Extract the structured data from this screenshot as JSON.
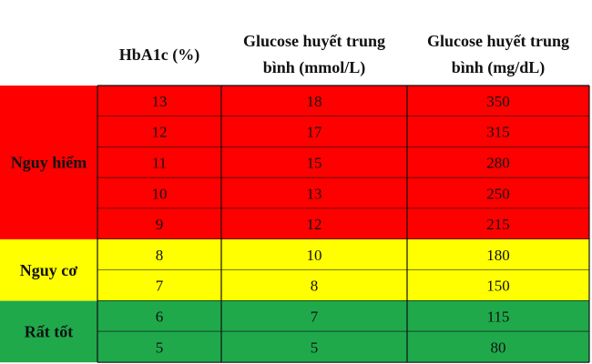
{
  "chart_data": {
    "type": "table",
    "columns": [
      {
        "key": "hba1c",
        "lines": [
          "HbA1c (%)"
        ]
      },
      {
        "key": "mmol",
        "lines": [
          "Glucose huyết trung",
          "bình (mmol/L)"
        ]
      },
      {
        "key": "mgdl",
        "lines": [
          "Glucose huyết trung",
          "bình (mg/dL)"
        ]
      }
    ],
    "groups": [
      {
        "label": "Nguy hiểm",
        "color": "#ff0000",
        "rows": [
          {
            "hba1c": 13,
            "mmol": 18,
            "mgdl": 350
          },
          {
            "hba1c": 12,
            "mmol": 17,
            "mgdl": 315
          },
          {
            "hba1c": 11,
            "mmol": 15,
            "mgdl": 280
          },
          {
            "hba1c": 10,
            "mmol": 13,
            "mgdl": 250
          },
          {
            "hba1c": 9,
            "mmol": 12,
            "mgdl": 215
          }
        ]
      },
      {
        "label": "Nguy cơ",
        "color": "#ffff00",
        "rows": [
          {
            "hba1c": 8,
            "mmol": 10,
            "mgdl": 180
          },
          {
            "hba1c": 7,
            "mmol": 8,
            "mgdl": 150
          }
        ]
      },
      {
        "label": "Rất tốt",
        "color": "#1fa94b",
        "rows": [
          {
            "hba1c": 6,
            "mmol": 7,
            "mgdl": 115
          },
          {
            "hba1c": 5,
            "mmol": 5,
            "mgdl": 80
          }
        ]
      }
    ]
  }
}
